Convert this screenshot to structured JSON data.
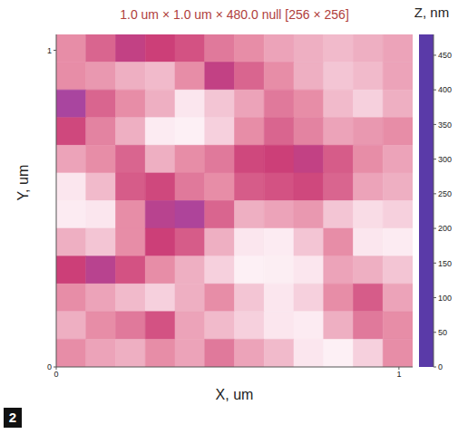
{
  "chart_data": {
    "type": "heatmap",
    "title": "1.0 um × 1.0 um × 480.0 null [256 × 256]",
    "x_label": "X, um",
    "y_label": "Y, um",
    "xlim": [
      0,
      1.04
    ],
    "ylim": [
      0,
      1.05
    ],
    "xticks": [
      0,
      1
    ],
    "yticks": [
      0,
      1
    ],
    "cells": [
      [
        300,
        260,
        200,
        220,
        240,
        280,
        300,
        320,
        330,
        340,
        330,
        320
      ],
      [
        300,
        310,
        330,
        340,
        300,
        200,
        260,
        300,
        330,
        350,
        340,
        320
      ],
      [
        150,
        260,
        300,
        330,
        380,
        350,
        320,
        280,
        300,
        340,
        360,
        330
      ],
      [
        230,
        290,
        330,
        400,
        420,
        360,
        300,
        260,
        290,
        320,
        310,
        300
      ],
      [
        320,
        300,
        260,
        330,
        300,
        280,
        230,
        220,
        200,
        250,
        300,
        320
      ],
      [
        380,
        340,
        250,
        230,
        280,
        300,
        250,
        240,
        230,
        260,
        320,
        330
      ],
      [
        400,
        380,
        300,
        180,
        160,
        260,
        330,
        320,
        310,
        350,
        370,
        360
      ],
      [
        330,
        350,
        300,
        220,
        250,
        330,
        380,
        400,
        350,
        300,
        380,
        400
      ],
      [
        220,
        180,
        240,
        300,
        330,
        360,
        420,
        410,
        380,
        320,
        330,
        350
      ],
      [
        300,
        320,
        340,
        360,
        330,
        300,
        350,
        380,
        360,
        300,
        250,
        320
      ],
      [
        330,
        300,
        280,
        240,
        320,
        340,
        360,
        380,
        400,
        330,
        280,
        300
      ],
      [
        300,
        320,
        330,
        300,
        320,
        280,
        320,
        340,
        380,
        420,
        360,
        300
      ]
    ],
    "colorbar": {
      "label": "Z, nm",
      "range": [
        0,
        480
      ],
      "ticks": [
        0,
        50,
        100,
        150,
        200,
        250,
        300,
        350,
        400,
        450
      ]
    },
    "panel": "2"
  }
}
